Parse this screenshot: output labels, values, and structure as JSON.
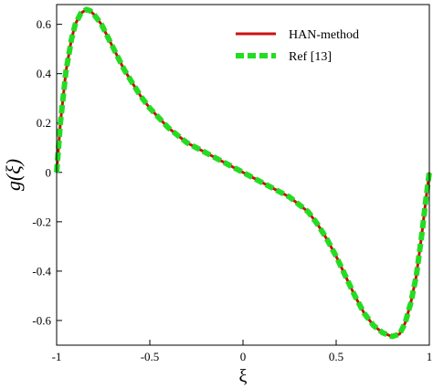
{
  "chart_data": {
    "type": "line",
    "xlabel": "ξ",
    "ylabel": "g(ξ)",
    "xlim": [
      -1,
      1
    ],
    "ylim": [
      -0.7,
      0.68
    ],
    "xticks": [
      -1,
      -0.5,
      0,
      0.5,
      1
    ],
    "xtick_labels": [
      "-1",
      "-0.5",
      "0",
      "0.5",
      "1"
    ],
    "yticks": [
      -0.6,
      -0.4,
      -0.2,
      0,
      0.2,
      0.4,
      0.6
    ],
    "ytick_labels": [
      "-0.6",
      "-0.4",
      "-0.2",
      "0",
      "0.2",
      "0.4",
      "0.6"
    ],
    "grid": false,
    "legend_position": "top-right",
    "series": [
      {
        "name": "HAN-method",
        "color": "#cc1111",
        "style": "solid",
        "x": [
          -1.0,
          -0.98,
          -0.95,
          -0.92,
          -0.9,
          -0.87,
          -0.84,
          -0.82,
          -0.8,
          -0.76,
          -0.72,
          -0.68,
          -0.64,
          -0.6,
          -0.55,
          -0.5,
          -0.45,
          -0.4,
          -0.35,
          -0.3,
          -0.25,
          -0.2,
          -0.15,
          -0.1,
          -0.05,
          0.0,
          0.05,
          0.1,
          0.15,
          0.2,
          0.25,
          0.3,
          0.35,
          0.4,
          0.45,
          0.5,
          0.55,
          0.6,
          0.65,
          0.7,
          0.75,
          0.8,
          0.82,
          0.84,
          0.87,
          0.9,
          0.93,
          0.96,
          0.98,
          1.0
        ],
        "y": [
          0.0,
          0.2,
          0.41,
          0.54,
          0.6,
          0.645,
          0.66,
          0.655,
          0.64,
          0.6,
          0.54,
          0.48,
          0.42,
          0.37,
          0.31,
          0.26,
          0.22,
          0.18,
          0.15,
          0.12,
          0.1,
          0.08,
          0.06,
          0.04,
          0.02,
          0.0,
          -0.02,
          -0.04,
          -0.06,
          -0.08,
          -0.1,
          -0.13,
          -0.16,
          -0.21,
          -0.27,
          -0.34,
          -0.42,
          -0.5,
          -0.57,
          -0.62,
          -0.65,
          -0.665,
          -0.66,
          -0.655,
          -0.61,
          -0.53,
          -0.42,
          -0.25,
          -0.12,
          0.0
        ]
      },
      {
        "name": "Ref [13]",
        "color": "#22dd22",
        "style": "dashed",
        "x": [
          -1.0,
          -0.98,
          -0.95,
          -0.92,
          -0.9,
          -0.87,
          -0.84,
          -0.82,
          -0.8,
          -0.76,
          -0.72,
          -0.68,
          -0.64,
          -0.6,
          -0.55,
          -0.5,
          -0.45,
          -0.4,
          -0.35,
          -0.3,
          -0.25,
          -0.2,
          -0.15,
          -0.1,
          -0.05,
          0.0,
          0.05,
          0.1,
          0.15,
          0.2,
          0.25,
          0.3,
          0.35,
          0.4,
          0.45,
          0.5,
          0.55,
          0.6,
          0.65,
          0.7,
          0.75,
          0.8,
          0.82,
          0.84,
          0.87,
          0.9,
          0.93,
          0.96,
          0.98,
          1.0
        ],
        "y": [
          0.0,
          0.2,
          0.41,
          0.54,
          0.6,
          0.645,
          0.66,
          0.655,
          0.64,
          0.6,
          0.54,
          0.48,
          0.42,
          0.37,
          0.31,
          0.26,
          0.22,
          0.18,
          0.15,
          0.12,
          0.1,
          0.08,
          0.06,
          0.04,
          0.02,
          0.0,
          -0.02,
          -0.04,
          -0.06,
          -0.08,
          -0.1,
          -0.13,
          -0.16,
          -0.21,
          -0.27,
          -0.34,
          -0.42,
          -0.5,
          -0.57,
          -0.62,
          -0.65,
          -0.665,
          -0.66,
          -0.655,
          -0.61,
          -0.53,
          -0.42,
          -0.25,
          -0.12,
          0.0
        ]
      }
    ]
  }
}
